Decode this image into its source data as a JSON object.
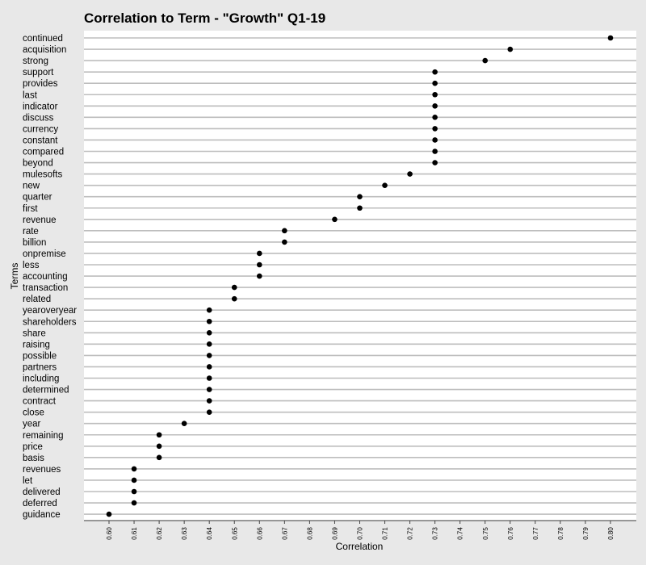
{
  "chart_data": {
    "type": "scatter",
    "title": "Correlation to Term - \"Growth\" Q1-19",
    "xlabel": "Correlation",
    "ylabel": "Terms",
    "xlim": [
      0.6,
      0.8
    ],
    "x_ticks": [
      "0.60",
      "0.61",
      "0.62",
      "0.63",
      "0.64",
      "0.65",
      "0.66",
      "0.67",
      "0.68",
      "0.69",
      "0.70",
      "0.71",
      "0.72",
      "0.73",
      "0.74",
      "0.75",
      "0.76",
      "0.77",
      "0.78",
      "0.79",
      "0.80"
    ],
    "grid": "horizontal",
    "point_color": "#000000",
    "grid_color": "#bdbdbd",
    "background_color": "#ffffff",
    "points": [
      {
        "term": "continued",
        "value": 0.8
      },
      {
        "term": "acquisition",
        "value": 0.76
      },
      {
        "term": "strong",
        "value": 0.75
      },
      {
        "term": "support",
        "value": 0.73
      },
      {
        "term": "provides",
        "value": 0.73
      },
      {
        "term": "last",
        "value": 0.73
      },
      {
        "term": "indicator",
        "value": 0.73
      },
      {
        "term": "discuss",
        "value": 0.73
      },
      {
        "term": "currency",
        "value": 0.73
      },
      {
        "term": "constant",
        "value": 0.73
      },
      {
        "term": "compared",
        "value": 0.73
      },
      {
        "term": "beyond",
        "value": 0.73
      },
      {
        "term": "mulesofts",
        "value": 0.72
      },
      {
        "term": "new",
        "value": 0.71
      },
      {
        "term": "quarter",
        "value": 0.7
      },
      {
        "term": "first",
        "value": 0.7
      },
      {
        "term": "revenue",
        "value": 0.69
      },
      {
        "term": "rate",
        "value": 0.67
      },
      {
        "term": "billion",
        "value": 0.67
      },
      {
        "term": "onpremise",
        "value": 0.66
      },
      {
        "term": "less",
        "value": 0.66
      },
      {
        "term": "accounting",
        "value": 0.66
      },
      {
        "term": "transaction",
        "value": 0.65
      },
      {
        "term": "related",
        "value": 0.65
      },
      {
        "term": "yearoveryear",
        "value": 0.64
      },
      {
        "term": "shareholders",
        "value": 0.64
      },
      {
        "term": "share",
        "value": 0.64
      },
      {
        "term": "raising",
        "value": 0.64
      },
      {
        "term": "possible",
        "value": 0.64
      },
      {
        "term": "partners",
        "value": 0.64
      },
      {
        "term": "including",
        "value": 0.64
      },
      {
        "term": "determined",
        "value": 0.64
      },
      {
        "term": "contract",
        "value": 0.64
      },
      {
        "term": "close",
        "value": 0.64
      },
      {
        "term": "year",
        "value": 0.63
      },
      {
        "term": "remaining",
        "value": 0.62
      },
      {
        "term": "price",
        "value": 0.62
      },
      {
        "term": "basis",
        "value": 0.62
      },
      {
        "term": "revenues",
        "value": 0.61
      },
      {
        "term": "let",
        "value": 0.61
      },
      {
        "term": "delivered",
        "value": 0.61
      },
      {
        "term": "deferred",
        "value": 0.61
      },
      {
        "term": "guidance",
        "value": 0.6
      }
    ]
  }
}
